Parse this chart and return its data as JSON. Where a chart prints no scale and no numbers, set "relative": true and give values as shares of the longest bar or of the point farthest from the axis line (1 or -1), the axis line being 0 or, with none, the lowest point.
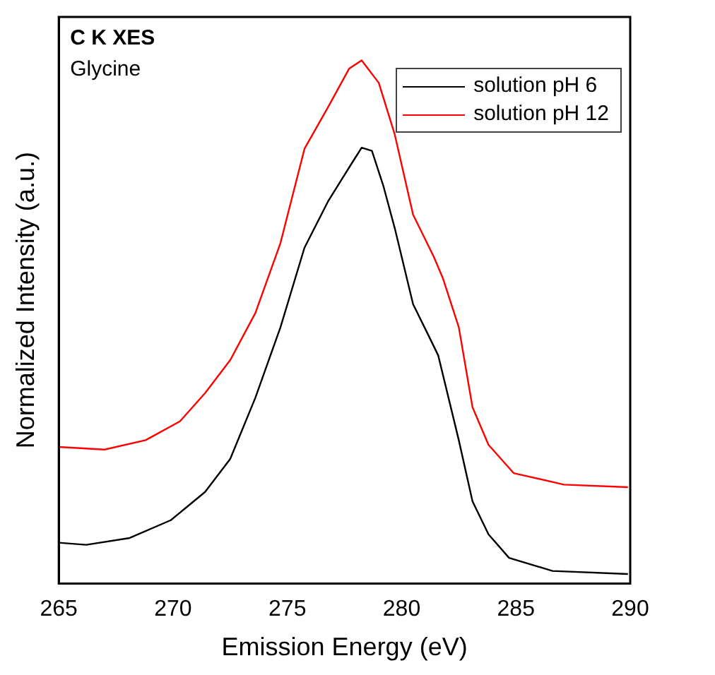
{
  "chart_data": {
    "type": "line",
    "title": "C K XES",
    "subtitle": "Glycine",
    "xlabel": "Emission Energy (eV)",
    "ylabel": "Normalized Intensity (a.u.)",
    "relative": true,
    "xlim": [
      265,
      290
    ],
    "xticks": [
      265,
      270,
      275,
      280,
      285,
      290
    ],
    "grid": false,
    "legend": "top right",
    "series": [
      {
        "name": "solution pH 6",
        "color": "#000000",
        "x": [
          265,
          266.2,
          268.1,
          269.9,
          271.4,
          272.5,
          273.6,
          274.7,
          275.75,
          276.8,
          277.9,
          278.25,
          278.7,
          279.2,
          279.7,
          280.5,
          281.3,
          281.6,
          282.5,
          283.1,
          283.8,
          284.7,
          286.6,
          289.9
        ],
        "values": [
          0.078,
          0.074,
          0.087,
          0.121,
          0.175,
          0.238,
          0.355,
          0.49,
          0.642,
          0.732,
          0.809,
          0.833,
          0.827,
          0.76,
          0.679,
          0.534,
          0.463,
          0.436,
          0.274,
          0.157,
          0.094,
          0.049,
          0.024,
          0.018
        ]
      },
      {
        "name": "solution pH 12",
        "color": "#ff0000",
        "x": [
          265,
          267,
          268.8,
          270.3,
          271.4,
          272.5,
          273.6,
          274.7,
          275.75,
          276.8,
          277.7,
          278.25,
          279,
          279.7,
          280.5,
          281.4,
          281.8,
          282.5,
          283.1,
          283.8,
          284.9,
          287.1,
          289.9
        ],
        "values": [
          0.261,
          0.256,
          0.274,
          0.31,
          0.364,
          0.427,
          0.517,
          0.651,
          0.831,
          0.912,
          0.984,
          1,
          0.957,
          0.858,
          0.705,
          0.625,
          0.584,
          0.49,
          0.337,
          0.265,
          0.211,
          0.189,
          0.184
        ]
      }
    ]
  }
}
